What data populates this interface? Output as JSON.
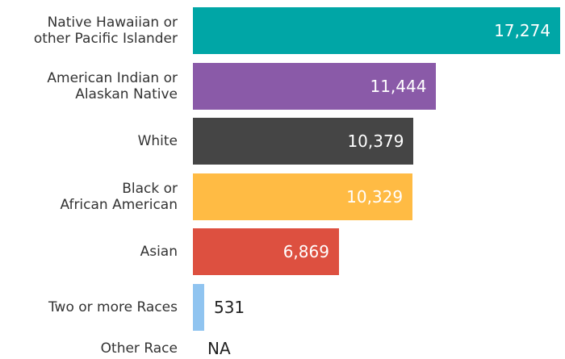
{
  "chart_data": {
    "type": "bar",
    "orientation": "horizontal",
    "categories": [
      "Native Hawaiian or\nother Pacific Islander",
      "American Indian or\nAlaskan Native",
      "White",
      "Black or\nAfrican American",
      "Asian",
      "Two or more Races",
      "Other Race"
    ],
    "values": [
      17274,
      11444,
      10379,
      10329,
      6869,
      531,
      null
    ],
    "value_labels": [
      "17,274",
      "11,444",
      "10,379",
      "10,329",
      "6,869",
      "531",
      "NA"
    ],
    "colors": [
      "#00a6a6",
      "#8a5aa8",
      "#454545",
      "#ffbb44",
      "#dd5040",
      "#90c4f0",
      null
    ],
    "xlim": [
      0,
      17500
    ]
  }
}
